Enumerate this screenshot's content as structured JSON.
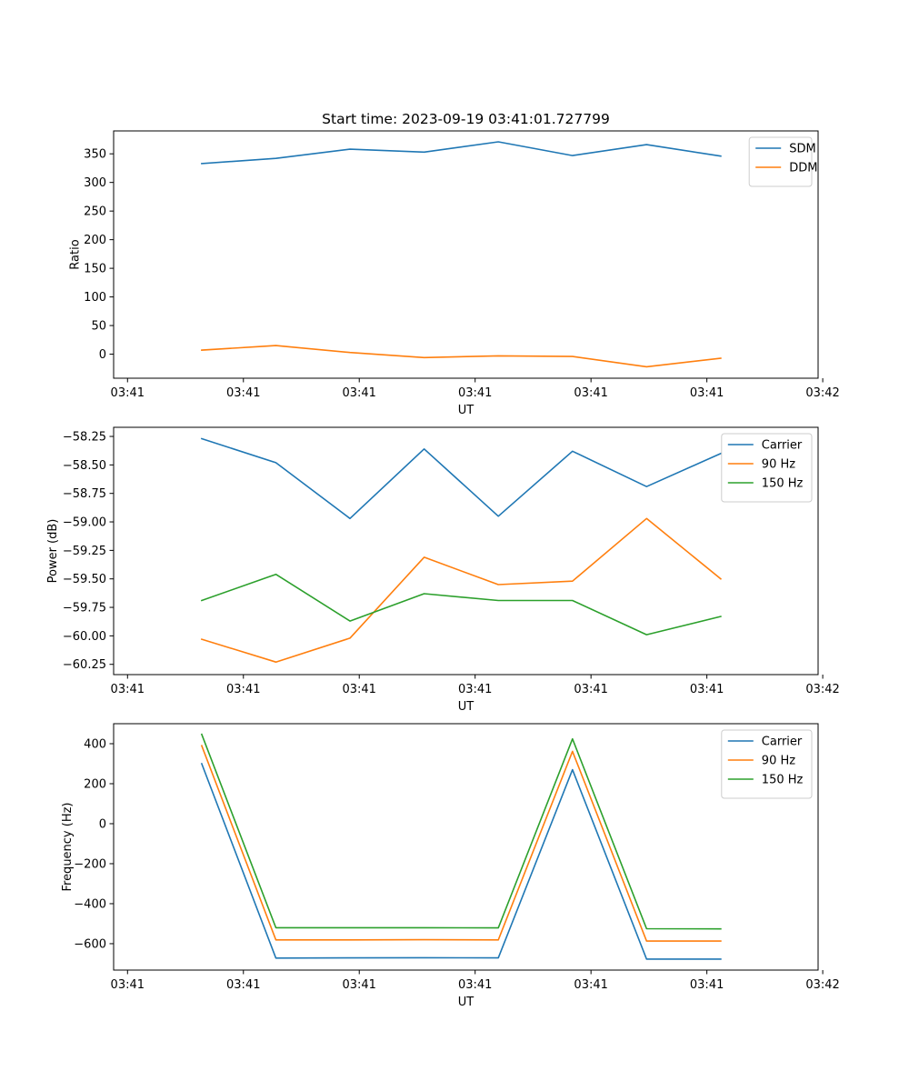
{
  "figure": {
    "title": "Start time: 2023-09-19 03:41:01.727799"
  },
  "chart_data": [
    {
      "type": "line",
      "ylabel": "Ratio",
      "xlabel": "UT",
      "x": [
        0.8,
        1.6,
        2.4,
        3.2,
        4.0,
        4.8,
        5.6,
        6.4
      ],
      "xlim": [
        -0.15,
        7.45
      ],
      "xticks": [
        0,
        1.25,
        2.5,
        3.75,
        5.0,
        6.25,
        7.5
      ],
      "xtick_labels": [
        "03:41",
        "03:41",
        "03:41",
        "03:41",
        "03:41",
        "03:41",
        "03:42"
      ],
      "ylim": [
        -42,
        390
      ],
      "yticks": [
        0,
        50,
        100,
        150,
        200,
        250,
        300,
        350
      ],
      "ytick_labels": [
        "0",
        "50",
        "100",
        "150",
        "200",
        "250",
        "300",
        "350"
      ],
      "legend_position": "top-right",
      "series": [
        {
          "name": "SDM",
          "color": "#1f77b4",
          "values": [
            333,
            342,
            358,
            353,
            371,
            347,
            366,
            346
          ]
        },
        {
          "name": "DDM",
          "color": "#ff7f0e",
          "values": [
            7,
            15,
            3,
            -6,
            -3,
            -4,
            -22,
            -7
          ]
        }
      ]
    },
    {
      "type": "line",
      "ylabel": "Power (dB)",
      "xlabel": "UT",
      "x": [
        0.8,
        1.6,
        2.4,
        3.2,
        4.0,
        4.8,
        5.6,
        6.4
      ],
      "xlim": [
        -0.15,
        7.45
      ],
      "xticks": [
        0,
        1.25,
        2.5,
        3.75,
        5.0,
        6.25,
        7.5
      ],
      "xtick_labels": [
        "03:41",
        "03:41",
        "03:41",
        "03:41",
        "03:41",
        "03:41",
        "03:42"
      ],
      "ylim": [
        -60.34,
        -58.17
      ],
      "yticks": [
        -60.25,
        -60.0,
        -59.75,
        -59.5,
        -59.25,
        -59.0,
        -58.75,
        -58.5,
        -58.25
      ],
      "ytick_labels": [
        "−60.25",
        "−60.00",
        "−59.75",
        "−59.50",
        "−59.25",
        "−59.00",
        "−58.75",
        "−58.50",
        "−58.25"
      ],
      "legend_position": "top-right",
      "series": [
        {
          "name": "Carrier",
          "color": "#1f77b4",
          "values": [
            -58.27,
            -58.48,
            -58.97,
            -58.36,
            -58.95,
            -58.38,
            -58.69,
            -58.4
          ]
        },
        {
          "name": "90 Hz",
          "color": "#ff7f0e",
          "values": [
            -60.03,
            -60.23,
            -60.02,
            -59.31,
            -59.55,
            -59.52,
            -58.97,
            -59.5
          ]
        },
        {
          "name": "150 Hz",
          "color": "#2ca02c",
          "values": [
            -59.69,
            -59.46,
            -59.87,
            -59.63,
            -59.69,
            -59.69,
            -59.99,
            -59.83
          ]
        }
      ]
    },
    {
      "type": "line",
      "ylabel": "Frequency (Hz)",
      "xlabel": "UT",
      "x": [
        0.8,
        1.6,
        2.4,
        3.2,
        4.0,
        4.8,
        5.6,
        6.4
      ],
      "xlim": [
        -0.15,
        7.45
      ],
      "xticks": [
        0,
        1.25,
        2.5,
        3.75,
        5.0,
        6.25,
        7.5
      ],
      "xtick_labels": [
        "03:41",
        "03:41",
        "03:41",
        "03:41",
        "03:41",
        "03:41",
        "03:42"
      ],
      "ylim": [
        -732,
        500
      ],
      "yticks": [
        -600,
        -400,
        -200,
        0,
        200,
        400
      ],
      "ytick_labels": [
        "−600",
        "−400",
        "−200",
        "0",
        "200",
        "400"
      ],
      "legend_position": "top-right",
      "series": [
        {
          "name": "Carrier",
          "color": "#1f77b4",
          "values": [
            300,
            -672,
            -671,
            -670,
            -671,
            270,
            -677,
            -677
          ]
        },
        {
          "name": "90 Hz",
          "color": "#ff7f0e",
          "values": [
            390,
            -581,
            -581,
            -580,
            -581,
            362,
            -587,
            -587
          ]
        },
        {
          "name": "150 Hz",
          "color": "#2ca02c",
          "values": [
            447,
            -520,
            -520,
            -520,
            -521,
            424,
            -525,
            -526
          ]
        }
      ]
    }
  ]
}
